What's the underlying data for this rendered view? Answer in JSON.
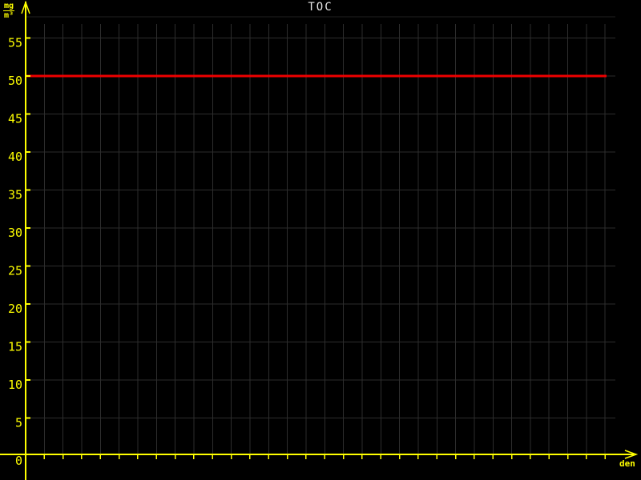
{
  "window": {
    "background": "#000000"
  },
  "chart_data": {
    "type": "line",
    "title": "TOC",
    "ylabel": "mg/m³",
    "unit_numerator": "mg",
    "unit_denominator": "m³",
    "xlabel": "den",
    "y_ticks": [
      0,
      5,
      10,
      15,
      20,
      25,
      30,
      35,
      40,
      45,
      50,
      55
    ],
    "ylim": [
      0,
      57.5
    ],
    "xlim_days": [
      0,
      31
    ],
    "x_gridline_count": 31,
    "x_tick_labels": [],
    "grid": true,
    "legend": "none",
    "series": [
      {
        "name": "toc-constant-line",
        "type": "constant-horizontal",
        "value": 50,
        "color": "#ee0000"
      }
    ],
    "colors": {
      "background": "#000000",
      "axis": "#ffff00",
      "grid": "#2d2d2d",
      "frame_top": "#1f1f1f",
      "title": "#e6e6e6",
      "tick_label": "#ffff00"
    }
  }
}
